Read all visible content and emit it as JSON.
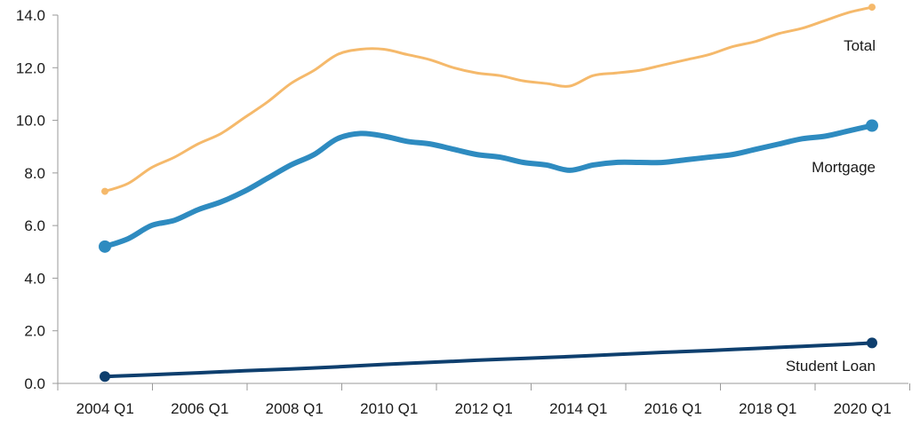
{
  "chart_data": {
    "type": "line",
    "title": "",
    "xlabel": "",
    "ylabel": "",
    "ylim": [
      0,
      14
    ],
    "yticks": [
      "0.0",
      "2.0",
      "4.0",
      "6.0",
      "8.0",
      "10.0",
      "12.0",
      "14.0"
    ],
    "xlim": [
      2004.0,
      2021.0
    ],
    "xticks": [
      "2004 Q1",
      "2006 Q1",
      "2008 Q1",
      "2010 Q1",
      "2012 Q1",
      "2014 Q1",
      "2016 Q1",
      "2018 Q1",
      "2020 Q1"
    ],
    "grid": false,
    "legend": "inline labels at right",
    "series": [
      {
        "name": "Total",
        "color": "#f5b96b",
        "x": [
          2004.0,
          2004.5,
          2005.0,
          2005.5,
          2006.0,
          2006.5,
          2007.0,
          2007.5,
          2008.0,
          2008.5,
          2009.0,
          2009.5,
          2010.0,
          2010.5,
          2011.0,
          2011.5,
          2012.0,
          2012.5,
          2013.0,
          2013.5,
          2014.0,
          2014.5,
          2015.0,
          2015.5,
          2016.0,
          2016.5,
          2017.0,
          2017.5,
          2018.0,
          2018.5,
          2019.0,
          2019.5,
          2020.0,
          2020.5
        ],
        "y": [
          7.3,
          7.6,
          8.2,
          8.6,
          9.1,
          9.5,
          10.1,
          10.7,
          11.4,
          11.9,
          12.5,
          12.7,
          12.7,
          12.5,
          12.3,
          12.0,
          11.8,
          11.7,
          11.5,
          11.4,
          11.3,
          11.7,
          11.8,
          11.9,
          12.1,
          12.3,
          12.5,
          12.8,
          13.0,
          13.3,
          13.5,
          13.8,
          14.1,
          14.3
        ]
      },
      {
        "name": "Mortgage",
        "color": "#2e8bc0",
        "x": [
          2004.0,
          2004.5,
          2005.0,
          2005.5,
          2006.0,
          2006.5,
          2007.0,
          2007.5,
          2008.0,
          2008.5,
          2009.0,
          2009.5,
          2010.0,
          2010.5,
          2011.0,
          2011.5,
          2012.0,
          2012.5,
          2013.0,
          2013.5,
          2014.0,
          2014.5,
          2015.0,
          2015.5,
          2016.0,
          2016.5,
          2017.0,
          2017.5,
          2018.0,
          2018.5,
          2019.0,
          2019.5,
          2020.0,
          2020.5
        ],
        "y": [
          5.2,
          5.5,
          6.0,
          6.2,
          6.6,
          6.9,
          7.3,
          7.8,
          8.3,
          8.7,
          9.3,
          9.5,
          9.4,
          9.2,
          9.1,
          8.9,
          8.7,
          8.6,
          8.4,
          8.3,
          8.1,
          8.3,
          8.4,
          8.4,
          8.4,
          8.5,
          8.6,
          8.7,
          8.9,
          9.1,
          9.3,
          9.4,
          9.6,
          9.8
        ]
      },
      {
        "name": "Student Loan",
        "color": "#0e3f6e",
        "x": [
          2004.0,
          2005.0,
          2006.0,
          2007.0,
          2008.0,
          2009.0,
          2010.0,
          2011.0,
          2012.0,
          2013.0,
          2014.0,
          2015.0,
          2016.0,
          2017.0,
          2018.0,
          2019.0,
          2020.0,
          2020.5
        ],
        "y": [
          0.26,
          0.33,
          0.4,
          0.48,
          0.55,
          0.63,
          0.72,
          0.8,
          0.88,
          0.95,
          1.02,
          1.1,
          1.18,
          1.25,
          1.33,
          1.41,
          1.49,
          1.54
        ]
      }
    ]
  }
}
